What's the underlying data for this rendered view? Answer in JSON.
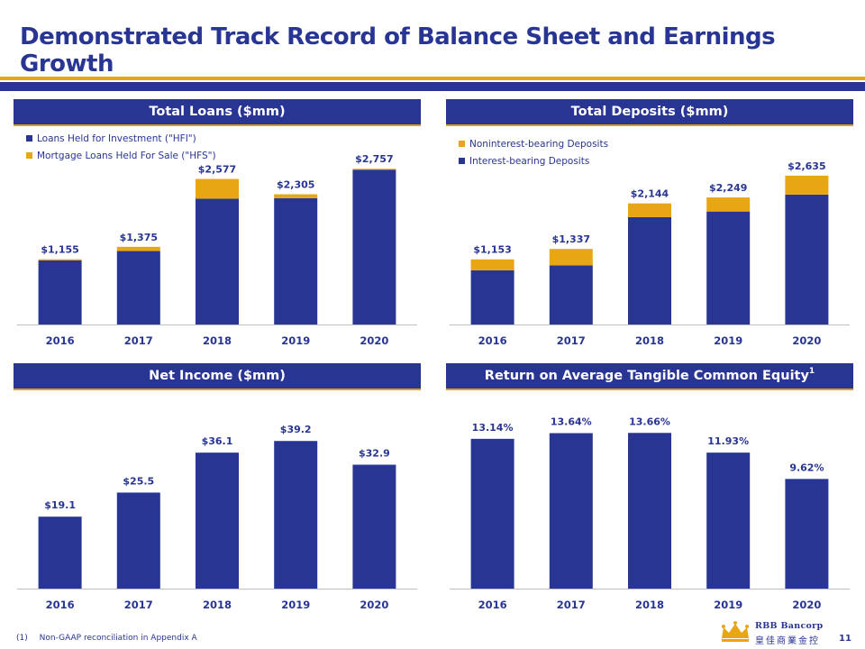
{
  "title": "Demonstrated Track Record of Balance Sheet and Earnings Growth",
  "colors": {
    "navy": "#283593",
    "gold": "#e8a615"
  },
  "panels": {
    "loans_header": "Total Loans ($mm)",
    "deposits_header": "Total Deposits ($mm)",
    "income_header": "Net Income ($mm)",
    "rotce_header": "Return on Average Tangible Common Equity",
    "rotce_footnote_mark": "1"
  },
  "chart_data": [
    {
      "id": "loans",
      "type": "bar",
      "stacked": true,
      "title": "Total Loans ($mm)",
      "categories": [
        "2016",
        "2017",
        "2018",
        "2019",
        "2020"
      ],
      "series": [
        {
          "name": "Loans Held for Investment (\"HFI\")",
          "color": "#283593",
          "values": [
            1135,
            1300,
            2227,
            2235,
            2740
          ]
        },
        {
          "name": "Mortgage Loans Held For Sale (\"HFS\")",
          "color": "#e8a615",
          "values": [
            20,
            75,
            350,
            70,
            17
          ]
        }
      ],
      "totals": [
        "$1,155",
        "$1,375",
        "$2,577",
        "$2,305",
        "$2,757"
      ],
      "ylim": [
        0,
        3000
      ],
      "legend_position": "top-left"
    },
    {
      "id": "deposits",
      "type": "bar",
      "stacked": true,
      "title": "Total Deposits ($mm)",
      "categories": [
        "2016",
        "2017",
        "2018",
        "2019",
        "2020"
      ],
      "series": [
        {
          "name": "Interest-bearing Deposits",
          "color": "#283593",
          "values": [
            960,
            1045,
            1900,
            2000,
            2300
          ]
        },
        {
          "name": "Noninterest-bearing Deposits",
          "color": "#e8a615",
          "values": [
            193,
            292,
            244,
            249,
            335
          ]
        }
      ],
      "legend_order": [
        "Noninterest-bearing Deposits",
        "Interest-bearing Deposits"
      ],
      "totals": [
        "$1,153",
        "$1,337",
        "$2,144",
        "$2,249",
        "$2,635"
      ],
      "ylim": [
        0,
        3000
      ],
      "legend_position": "top-left"
    },
    {
      "id": "income",
      "type": "bar",
      "title": "Net Income ($mm)",
      "categories": [
        "2016",
        "2017",
        "2018",
        "2019",
        "2020"
      ],
      "values": [
        19.1,
        25.5,
        36.1,
        39.2,
        32.9
      ],
      "labels": [
        "$19.1",
        "$25.5",
        "$36.1",
        "$39.2",
        "$32.9"
      ],
      "ylim": [
        0,
        45
      ]
    },
    {
      "id": "rotce",
      "type": "bar",
      "title": "Return on Average Tangible Common Equity",
      "categories": [
        "2016",
        "2017",
        "2018",
        "2019",
        "2020"
      ],
      "values": [
        13.14,
        13.64,
        13.66,
        11.93,
        9.62
      ],
      "labels": [
        "13.14%",
        "13.64%",
        "13.66%",
        "11.93%",
        "9.62%"
      ],
      "ylim": [
        0,
        15.5
      ]
    }
  ],
  "footnote": {
    "number": "(1)",
    "text": "Non-GAAP reconciliation in Appendix A"
  },
  "logo": {
    "name": "RBB Bancorp",
    "chinese": "皇佳商業金控"
  },
  "page_number": "11"
}
